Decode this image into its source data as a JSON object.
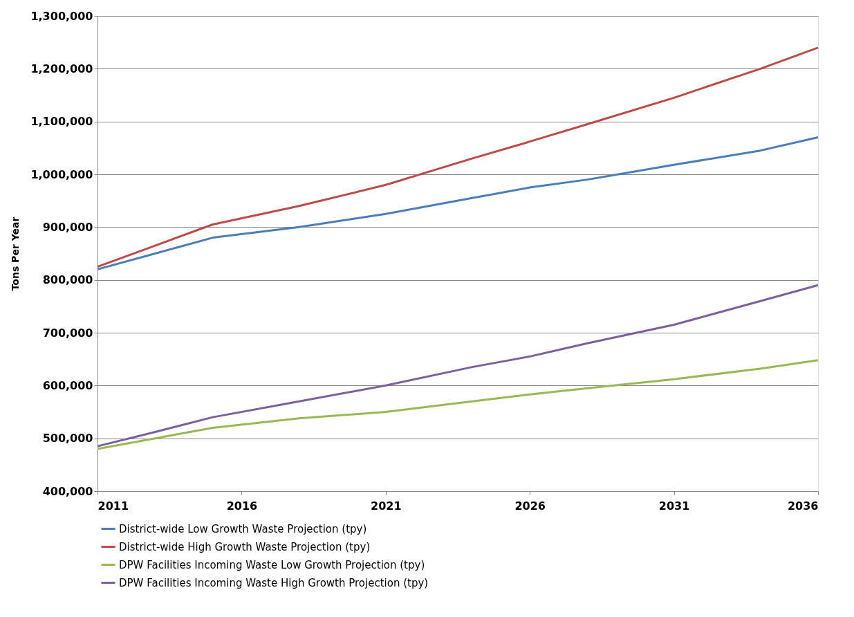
{
  "chart_data": {
    "type": "line",
    "ylabel": "Tons Per Year",
    "xlim": [
      2011,
      2036
    ],
    "xticks": [
      2011,
      2016,
      2021,
      2026,
      2031,
      2036
    ],
    "ylim": [
      400000,
      1300000
    ],
    "yticks": [
      {
        "value": 400000,
        "label": "400,000"
      },
      {
        "value": 500000,
        "label": "500,000"
      },
      {
        "value": 600000,
        "label": "600,000"
      },
      {
        "value": 700000,
        "label": "700,000"
      },
      {
        "value": 800000,
        "label": "800,000"
      },
      {
        "value": 900000,
        "label": "900,000"
      },
      {
        "value": 1000000,
        "label": "1,000,000"
      },
      {
        "value": 1100000,
        "label": "1,100,000"
      },
      {
        "value": 1200000,
        "label": "1,200,000"
      },
      {
        "value": 1300000,
        "label": "1,300,000"
      }
    ],
    "grid": "y",
    "legend": "bottom",
    "marker": "none",
    "line_style": "solid",
    "series": [
      {
        "name": "District-wide Low Growth Waste Projection (tpy)",
        "color": "#4a7ebb",
        "x": [
          2011,
          2013,
          2015,
          2018,
          2021,
          2024,
          2026,
          2028,
          2031,
          2034,
          2036
        ],
        "values": [
          820000,
          850000,
          880000,
          900000,
          925000,
          955000,
          975000,
          990000,
          1018000,
          1045000,
          1070000
        ]
      },
      {
        "name": "District-wide High Growth Waste Projection (tpy)",
        "color": "#be4b48",
        "x": [
          2011,
          2013,
          2015,
          2018,
          2021,
          2024,
          2026,
          2028,
          2031,
          2034,
          2036
        ],
        "values": [
          825000,
          865000,
          905000,
          940000,
          980000,
          1030000,
          1062000,
          1095000,
          1145000,
          1200000,
          1240000
        ]
      },
      {
        "name": "DPW Facilities Incoming Waste Low Growth Projection (tpy)",
        "color": "#98b954",
        "x": [
          2011,
          2013,
          2015,
          2018,
          2021,
          2024,
          2026,
          2028,
          2031,
          2034,
          2036
        ],
        "values": [
          480000,
          500000,
          520000,
          538000,
          550000,
          570000,
          583000,
          595000,
          612000,
          632000,
          648000
        ]
      },
      {
        "name": "DPW Facilities Incoming Waste High Growth Projection (tpy)",
        "color": "#7d60a0",
        "x": [
          2011,
          2013,
          2015,
          2018,
          2021,
          2024,
          2026,
          2028,
          2031,
          2034,
          2036
        ],
        "values": [
          485000,
          512000,
          540000,
          570000,
          600000,
          635000,
          655000,
          680000,
          715000,
          760000,
          790000
        ]
      }
    ]
  }
}
